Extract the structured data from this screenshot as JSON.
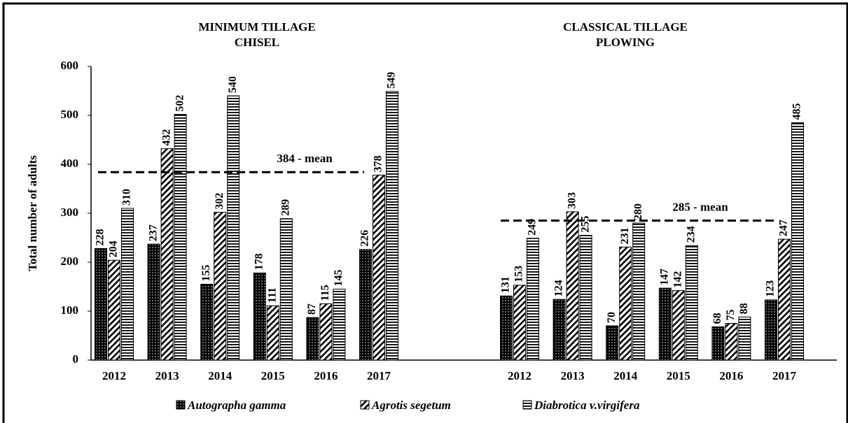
{
  "chart_data": {
    "type": "bar",
    "ylabel": "Total number of adults",
    "ylim": [
      0,
      600
    ],
    "yticks": [
      0,
      100,
      200,
      300,
      400,
      500,
      600
    ],
    "series": [
      {
        "name": "Autographa gamma",
        "color": "#000000",
        "pattern": "dots"
      },
      {
        "name": "Agrotis segetum",
        "color": "#000000",
        "pattern": "diagonal"
      },
      {
        "name": "Diabrotica v.virgifera",
        "color": "#000000",
        "pattern": "horizontal"
      }
    ],
    "panels": [
      {
        "title": [
          "MINIMUM TILLAGE",
          "CHISEL"
        ],
        "categories": [
          "2012",
          "2013",
          "2014",
          "2015",
          "2016",
          "2017"
        ],
        "values": [
          [
            228,
            237,
            155,
            178,
            87,
            226
          ],
          [
            204,
            432,
            302,
            111,
            115,
            378
          ],
          [
            310,
            502,
            540,
            289,
            145,
            549
          ]
        ],
        "mean": 384,
        "mean_label": "384 - mean"
      },
      {
        "title": [
          "CLASSICAL TILLAGE",
          "PLOWING"
        ],
        "categories": [
          "2012",
          "2013",
          "2014",
          "2015",
          "2016",
          "2017"
        ],
        "values": [
          [
            131,
            124,
            70,
            147,
            68,
            123
          ],
          [
            153,
            303,
            231,
            142,
            75,
            247
          ],
          [
            249,
            255,
            280,
            234,
            88,
            485
          ]
        ],
        "mean": 285,
        "mean_label": "285 - mean"
      }
    ]
  }
}
